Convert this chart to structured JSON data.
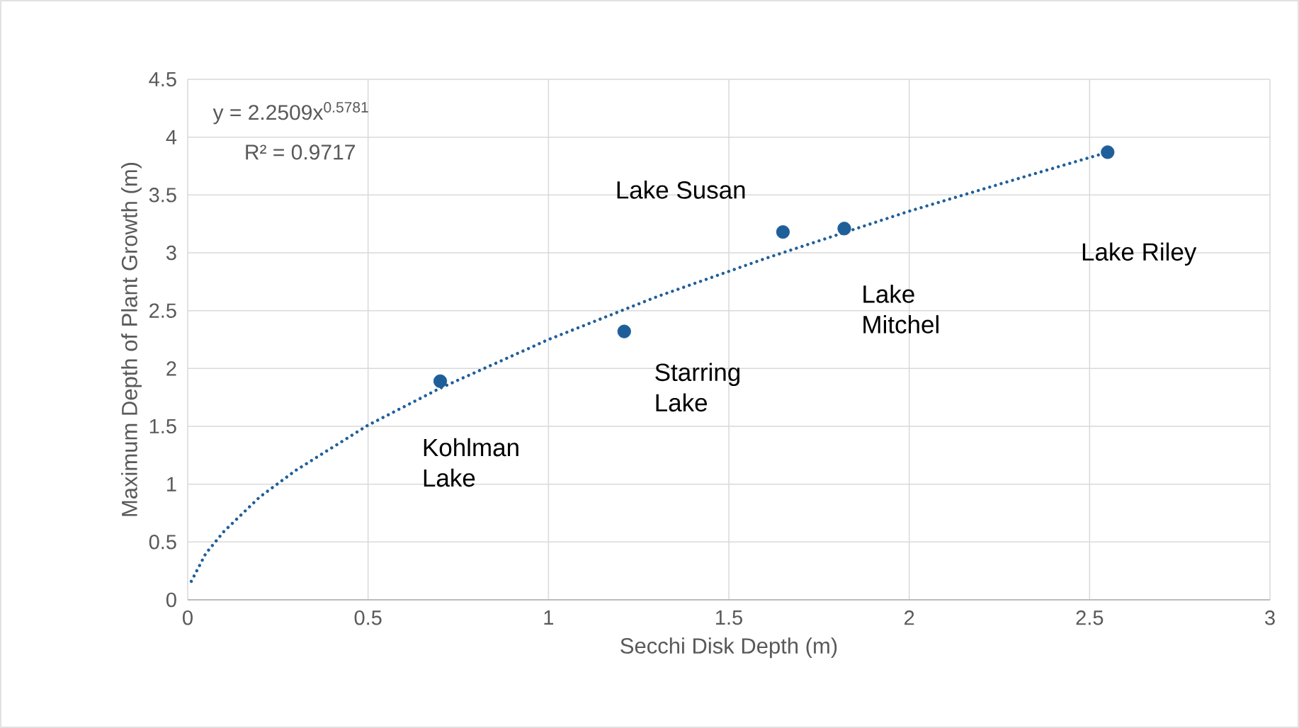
{
  "chart_data": {
    "type": "scatter",
    "xlabel": "Secchi Disk Depth (m)",
    "ylabel": "Maximum Depth of Plant Growth (m)",
    "xlim": [
      0,
      3
    ],
    "xticks": [
      0,
      0.5,
      1,
      1.5,
      2,
      2.5,
      3
    ],
    "ylim": [
      0,
      4.5
    ],
    "yticks": [
      0,
      0.5,
      1,
      1.5,
      2,
      2.5,
      3,
      3.5,
      4,
      4.5
    ],
    "grid": true,
    "series": [
      {
        "color": "#1f5f99",
        "marker": "circle",
        "x": [
          0.7,
          1.21,
          1.65,
          1.82,
          2.55
        ],
        "values": [
          1.89,
          2.32,
          3.18,
          3.21,
          3.87
        ]
      },
      {
        "type": "line",
        "color": "#1f5f99",
        "marker": "none",
        "line_style": "dotted",
        "x": [
          0.01,
          0.05,
          0.1,
          0.2,
          0.3,
          0.5,
          0.7,
          1.0,
          1.3,
          1.6,
          2.0,
          2.3,
          2.55
        ],
        "values": [
          0.16,
          0.4,
          0.59,
          0.89,
          1.12,
          1.51,
          1.83,
          2.25,
          2.62,
          2.95,
          3.36,
          3.64,
          3.87
        ]
      }
    ],
    "annotations": [
      "y = 2.2509x$^{0.5781}$",
      "R² = 0.9717",
      {
        "text": "Kohlman Lake",
        "x": 0.7,
        "y": 1.89
      },
      {
        "text": "Starring Lake",
        "x": 1.21,
        "y": 2.32
      },
      {
        "text": "Lake Susan",
        "x": 1.65,
        "y": 3.18
      },
      {
        "text": "Lake Mitchel",
        "x": 1.82,
        "y": 3.21
      },
      "Lake Riley"
    ]
  }
}
